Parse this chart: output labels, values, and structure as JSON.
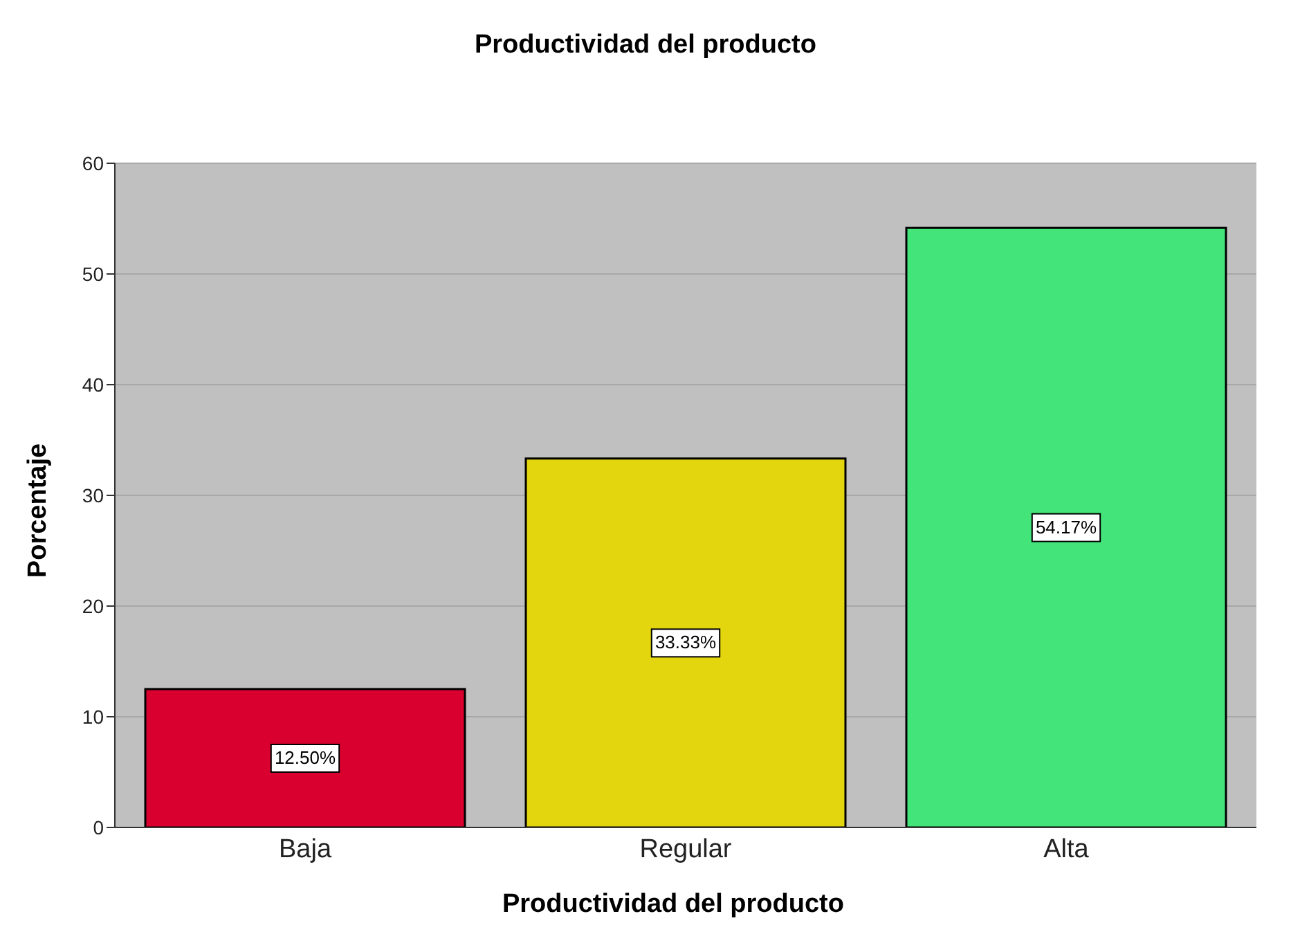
{
  "chart_data": {
    "type": "bar",
    "title": "Productividad del producto",
    "xlabel": "Productividad del producto",
    "ylabel": "Porcentaje",
    "categories": [
      "Baja",
      "Regular",
      "Alta"
    ],
    "values": [
      12.5,
      33.33,
      54.17
    ],
    "colors": [
      "#d9002f",
      "#e3d60f",
      "#43e57a"
    ],
    "value_labels": [
      "12.50%",
      "33.33%",
      "54.17%"
    ],
    "ylim": [
      0,
      60
    ],
    "yticks": [
      0,
      10,
      20,
      30,
      40,
      50,
      60
    ],
    "grid": "y",
    "legend": false
  }
}
